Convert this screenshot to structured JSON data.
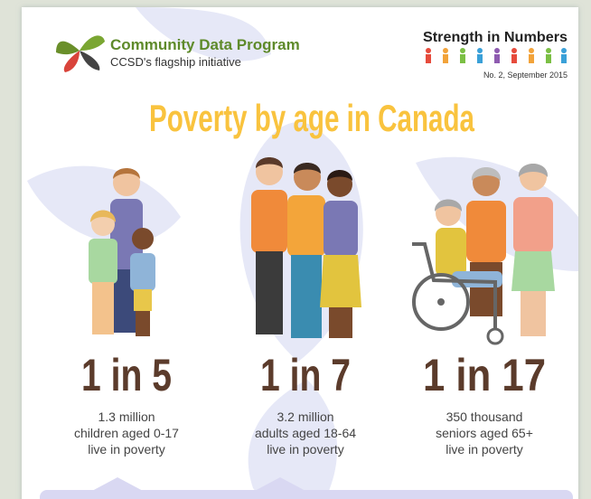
{
  "header": {
    "logo_title": "Community Data Program",
    "logo_subtitle": "CCSD's flagship initiative",
    "series_title": "Strength in Numbers",
    "issue": "No. 2, September 2015"
  },
  "title": "Poverty by age in Canada",
  "groups": [
    {
      "ratio": "1 in 5",
      "lines": [
        "1.3 million",
        "children aged 0-17",
        "live in poverty"
      ]
    },
    {
      "ratio": "1 in 7",
      "lines": [
        "3.2 million",
        "adults aged 18-64",
        "live in poverty"
      ]
    },
    {
      "ratio": "1 in 17",
      "lines": [
        "350 thousand",
        "seniors aged 65+",
        "live in poverty"
      ]
    }
  ]
}
